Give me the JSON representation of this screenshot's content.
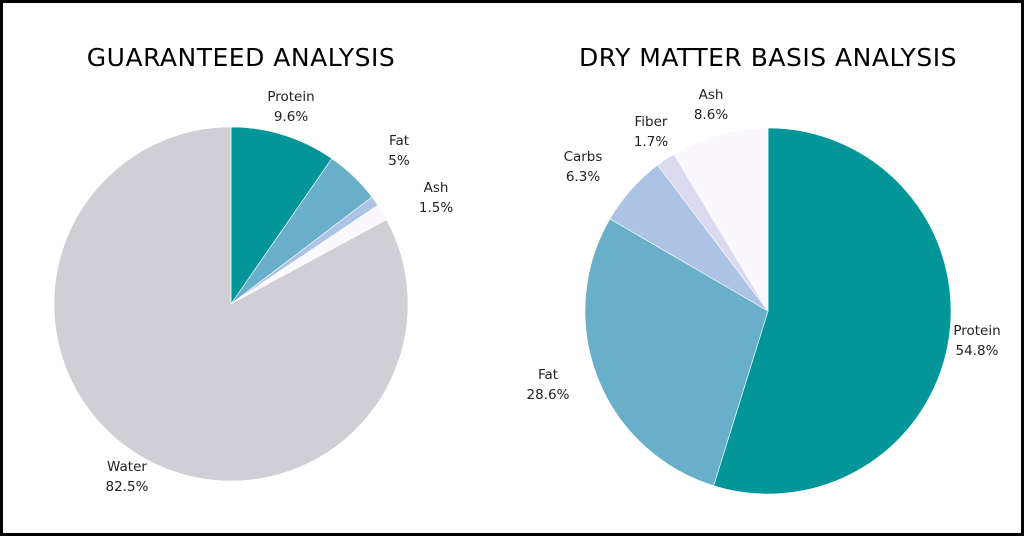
{
  "chart_data": [
    {
      "type": "pie",
      "title": "GUARANTEED ANALYSIS",
      "slices": [
        {
          "label": "Protein",
          "value_label": "9.6%",
          "value": 9.6,
          "color": "#039699"
        },
        {
          "label": "Fat",
          "value_label": "5%",
          "value": 5.0,
          "color": "#6aafc9"
        },
        {
          "label": "",
          "value_label": "",
          "value": 0.9,
          "color": "#adc3e6"
        },
        {
          "label": "Ash",
          "value_label": "1.5%",
          "value": 1.5,
          "color": "#fbf8fd"
        },
        {
          "label": "Water",
          "value_label": "82.5%",
          "value": 82.5,
          "color": "#d1cfd6"
        }
      ]
    },
    {
      "type": "pie",
      "title": "DRY MATTER BASIS ANALYSIS",
      "slices": [
        {
          "label": "Protein",
          "value_label": "54.8%",
          "value": 54.8,
          "color": "#039699"
        },
        {
          "label": "Fat",
          "value_label": "28.6%",
          "value": 28.6,
          "color": "#6aafc9"
        },
        {
          "label": "Carbs",
          "value_label": "6.3%",
          "value": 6.3,
          "color": "#adc3e6"
        },
        {
          "label": "Fiber",
          "value_label": "1.7%",
          "value": 1.7,
          "color": "#dad9ee"
        },
        {
          "label": "Ash",
          "value_label": "8.6%",
          "value": 8.6,
          "color": "#fbf8fd"
        }
      ]
    }
  ]
}
